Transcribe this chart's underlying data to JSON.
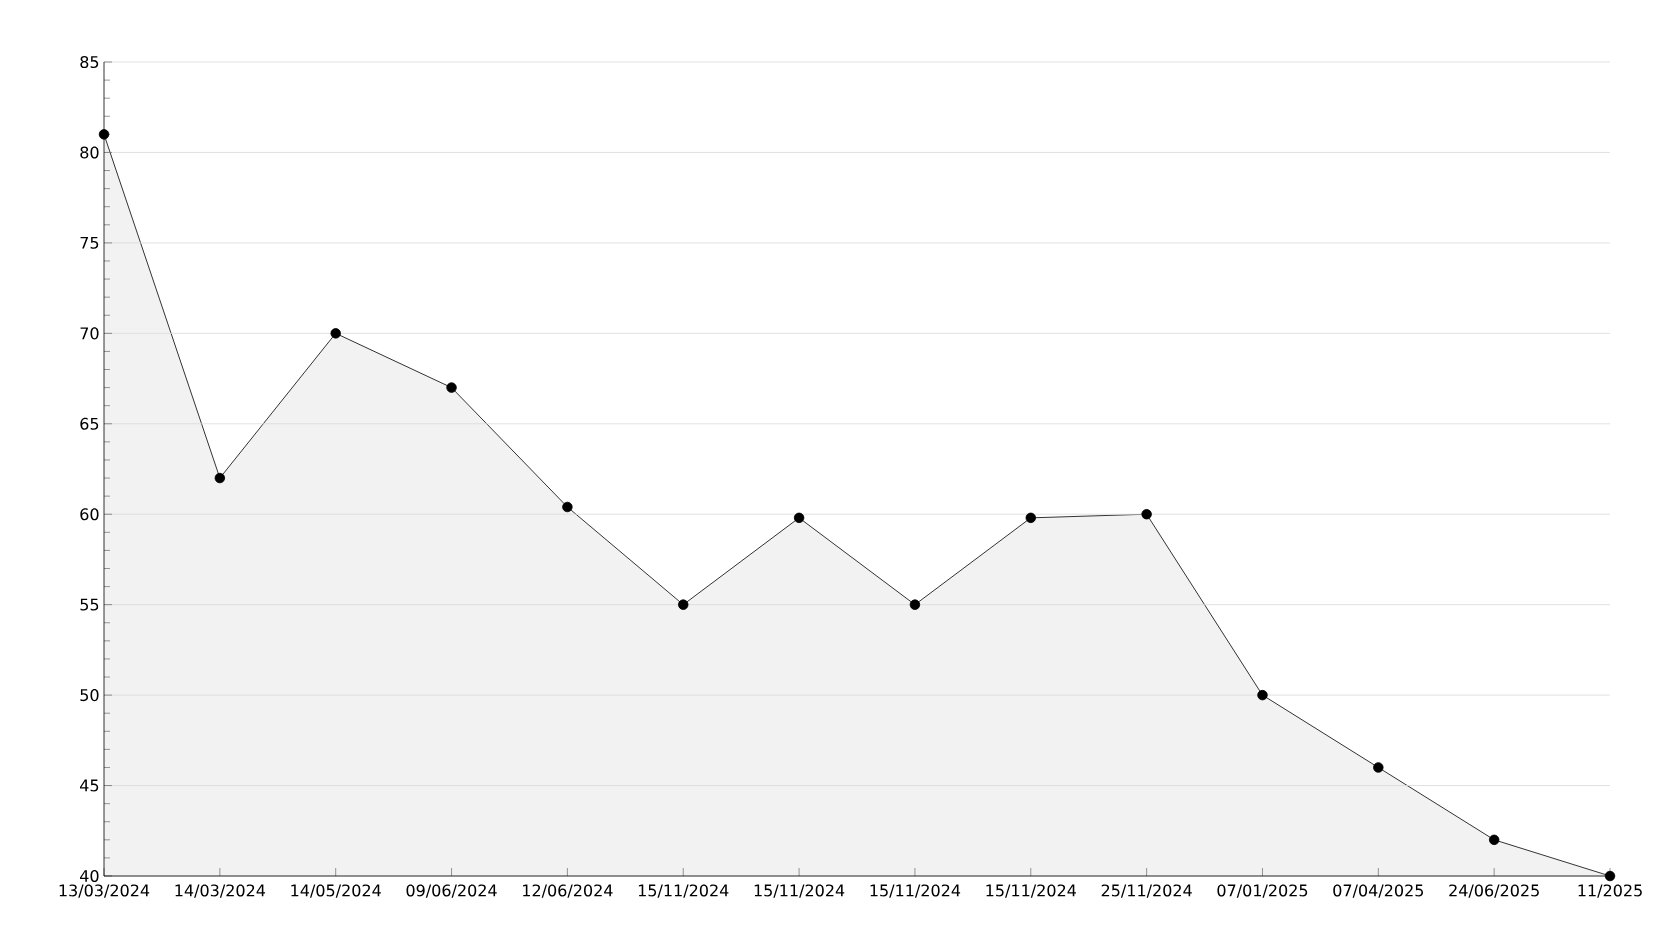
{
  "chart_data": {
    "type": "area",
    "categories": [
      "13/03/2024",
      "14/03/2024",
      "14/05/2024",
      "09/06/2024",
      "12/06/2024",
      "15/11/2024",
      "15/11/2024",
      "15/11/2024",
      "15/11/2024",
      "25/11/2024",
      "07/01/2025",
      "07/04/2025",
      "24/06/2025",
      "11/2025"
    ],
    "series": [
      {
        "color": "#000000",
        "values": [
          81,
          62,
          70,
          67,
          60.4,
          55,
          59.8,
          55,
          59.8,
          60,
          50,
          46,
          42,
          40
        ]
      }
    ],
    "ylim": [
      40,
      85
    ],
    "yticks": [
      40,
      45,
      50,
      55,
      60,
      65,
      70,
      75,
      80,
      85
    ],
    "grid": "y",
    "marker": "circle",
    "line_style": "solid"
  }
}
